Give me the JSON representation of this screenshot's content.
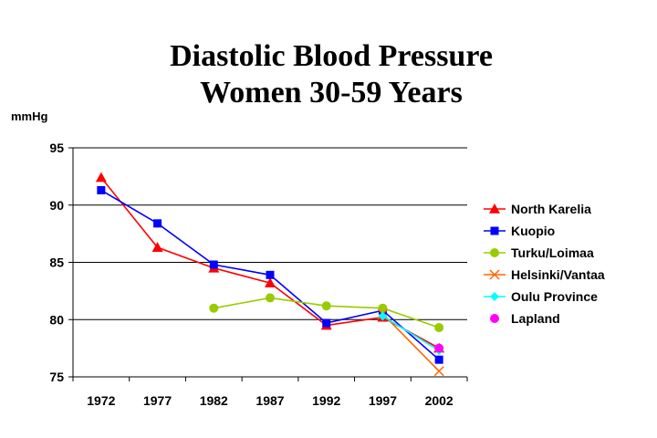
{
  "chart_data": {
    "type": "line",
    "title_line1": "Diastolic Blood Pressure",
    "title_line2": "Women 30-59 Years",
    "ylabel": "mmHg",
    "xlabel": "",
    "categories": [
      "1972",
      "1977",
      "1982",
      "1987",
      "1992",
      "1997",
      "2002"
    ],
    "y_ticks": [
      "95",
      "90",
      "85",
      "80",
      "75"
    ],
    "ylim": [
      75,
      95
    ],
    "grid": "horizontal",
    "legend_position": "right",
    "series": [
      {
        "name": "North Karelia",
        "color": "#ff0000",
        "marker": "triangle",
        "values": [
          92.4,
          86.3,
          84.5,
          83.2,
          79.5,
          80.2,
          77.5
        ]
      },
      {
        "name": "Kuopio",
        "color": "#0000ff",
        "marker": "square",
        "values": [
          91.3,
          88.4,
          84.8,
          83.9,
          79.7,
          80.8,
          76.5
        ]
      },
      {
        "name": "Turku/Loimaa",
        "color": "#99cc00",
        "marker": "circle",
        "values": [
          null,
          null,
          81.0,
          81.9,
          81.2,
          81.0,
          79.3
        ]
      },
      {
        "name": "Helsinki/Vantaa",
        "color": "#ff6600",
        "marker": "x",
        "values": [
          null,
          null,
          null,
          null,
          null,
          80.5,
          75.5
        ]
      },
      {
        "name": "Oulu Province",
        "color": "#00ffff",
        "marker": "diamond",
        "values": [
          null,
          null,
          null,
          null,
          null,
          80.3,
          77.3
        ]
      },
      {
        "name": "Lapland",
        "color": "#ff00ff",
        "marker": "circle",
        "values": [
          null,
          null,
          null,
          null,
          null,
          null,
          77.5
        ]
      }
    ]
  }
}
